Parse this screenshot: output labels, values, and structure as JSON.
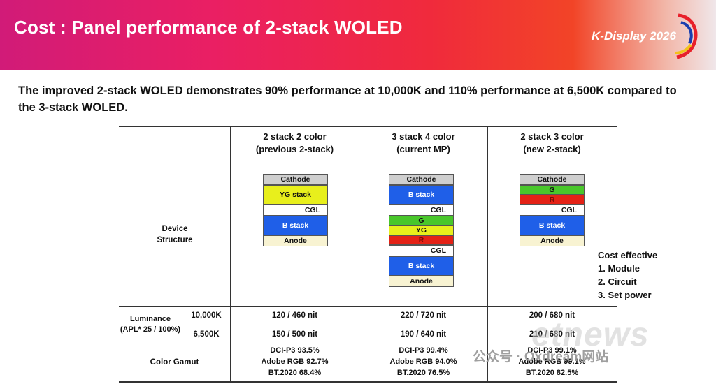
{
  "banner": {
    "title": "Cost : Panel performance of 2-stack WOLED",
    "logo": "K-Display 2026"
  },
  "subtitle": "The improved 2-stack WOLED demonstrates 90% performance at 10,000K and 110% performance at 6,500K compared to the 3-stack WOLED.",
  "table": {
    "columns": [
      {
        "line1": "2 stack 2 color",
        "line2": "(previous 2-stack)"
      },
      {
        "line1": "3 stack 4 color",
        "line2": "(current MP)"
      },
      {
        "line1": "2 stack 3 color",
        "line2": "(new 2-stack)"
      }
    ],
    "device_label_1": "Device",
    "device_label_2": "Structure",
    "stacks": [
      [
        {
          "label": "Cathode",
          "color": "#cfcfcf"
        },
        {
          "label": "YG stack",
          "color": "#e8ef1c"
        },
        {
          "label": "CGL",
          "color": "#ffffff"
        },
        {
          "label": "B stack",
          "color": "#1f5fe8"
        },
        {
          "label": "Anode",
          "color": "#f8f3d2"
        }
      ],
      [
        {
          "label": "Cathode",
          "color": "#cfcfcf"
        },
        {
          "label": "B stack",
          "color": "#1f5fe8"
        },
        {
          "label": "CGL",
          "color": "#ffffff"
        },
        {
          "label": "G",
          "color": "#49c72b"
        },
        {
          "label": "YG",
          "color": "#e8ef1c"
        },
        {
          "label": "R",
          "color": "#e42216"
        },
        {
          "label": "CGL",
          "color": "#ffffff"
        },
        {
          "label": "B stack",
          "color": "#1f5fe8"
        },
        {
          "label": "Anode",
          "color": "#f8f3d2"
        }
      ],
      [
        {
          "label": "Cathode",
          "color": "#cfcfcf"
        },
        {
          "label": "G",
          "color": "#49c72b"
        },
        {
          "label": "R",
          "color": "#e42216"
        },
        {
          "label": "CGL",
          "color": "#ffffff"
        },
        {
          "label": "B stack",
          "color": "#1f5fe8"
        },
        {
          "label": "Anode",
          "color": "#f8f3d2"
        }
      ]
    ],
    "cost": {
      "title": "Cost effective",
      "items": [
        "1. Module",
        "2. Circuit",
        "3. Set power"
      ]
    },
    "luminance": {
      "label_1": "Luminance",
      "label_2": "(APL* 25 / 100%)",
      "rows": [
        {
          "temp": "10,000K",
          "values": [
            "120 / 460 nit",
            "220 / 720 nit",
            "200 / 680 nit"
          ]
        },
        {
          "temp": "6,500K",
          "values": [
            "150 / 500 nit",
            "190 / 640 nit",
            "210 / 680 nit"
          ]
        }
      ]
    },
    "gamut": {
      "label": "Color Gamut",
      "values": [
        [
          "DCI-P3 93.5%",
          "Adobe RGB 92.7%",
          "BT.2020 68.4%"
        ],
        [
          "DCI-P3 99.4%",
          "Adobe RGB 94.0%",
          "BT.2020 76.5%"
        ],
        [
          "DCI-P3 99.1%",
          "Adobe RGB 99.1%",
          "BT.2020 82.5%"
        ]
      ]
    }
  },
  "watermark": {
    "site": "etnews",
    "account": "公众号 · Oxdream网站"
  }
}
